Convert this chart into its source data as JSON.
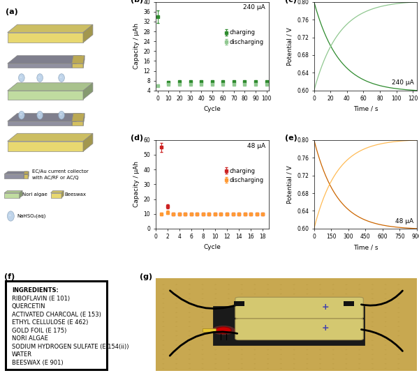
{
  "panel_b": {
    "annotation": "240 μA",
    "charge_cycles": [
      0,
      10,
      20,
      30,
      40,
      50,
      60,
      70,
      80,
      90,
      100
    ],
    "charge_vals": [
      34,
      7.2,
      7.5,
      7.5,
      7.5,
      7.5,
      7.5,
      7.5,
      7.5,
      7.5,
      7.5
    ],
    "charge_err": [
      2.5,
      0.4,
      0.4,
      0.4,
      0.4,
      0.4,
      0.4,
      0.4,
      0.4,
      0.4,
      0.4
    ],
    "discharge_cycles": [
      0,
      10,
      20,
      30,
      40,
      50,
      60,
      70,
      80,
      90,
      100
    ],
    "discharge_vals": [
      6.0,
      6.5,
      6.5,
      6.5,
      6.5,
      6.5,
      6.5,
      6.5,
      6.5,
      6.5,
      6.5
    ],
    "discharge_err": [
      0.4,
      0.4,
      0.4,
      0.4,
      0.4,
      0.4,
      0.4,
      0.4,
      0.4,
      0.4,
      0.4
    ],
    "ylabel": "Capacity / μAh",
    "xlabel": "Cycle",
    "ylim": [
      4,
      40
    ],
    "yticks": [
      4,
      8,
      12,
      16,
      20,
      24,
      28,
      32,
      36,
      40
    ],
    "xlim": [
      -2,
      102
    ],
    "xticks": [
      0,
      10,
      20,
      30,
      40,
      50,
      60,
      70,
      80,
      90,
      100
    ],
    "charge_color": "#2e8b2e",
    "discharge_color": "#90c890",
    "legend_charge": "charging",
    "legend_discharge": "discharging"
  },
  "panel_c": {
    "annotation": "240 μA",
    "ylabel": "Potential / V",
    "xlabel": "Time / s",
    "ylim": [
      0.6,
      0.8
    ],
    "yticks": [
      0.6,
      0.64,
      0.68,
      0.72,
      0.76,
      0.8
    ],
    "xlim": [
      0,
      125
    ],
    "xticks": [
      0,
      20,
      40,
      60,
      80,
      100,
      120
    ],
    "line_color_dark": "#2e8b2e",
    "line_color_light": "#90c890"
  },
  "panel_d": {
    "annotation": "48 μA",
    "charge_cycles": [
      1,
      2,
      3,
      4,
      5,
      6,
      7,
      8,
      9,
      10,
      11,
      12,
      13,
      14,
      15,
      16,
      17,
      18
    ],
    "charge_vals": [
      55,
      15,
      10,
      10,
      10,
      10,
      10,
      10,
      10,
      10,
      10,
      10,
      10,
      10,
      10,
      10,
      10,
      10
    ],
    "charge_err": [
      3,
      1.5,
      0.5,
      0.5,
      0.5,
      0.5,
      0.5,
      0.5,
      0.5,
      0.5,
      0.5,
      0.5,
      0.5,
      0.5,
      0.5,
      0.5,
      0.5,
      0.5
    ],
    "discharge_cycles": [
      1,
      2,
      3,
      4,
      5,
      6,
      7,
      8,
      9,
      10,
      11,
      12,
      13,
      14,
      15,
      16,
      17,
      18
    ],
    "discharge_vals": [
      10,
      11,
      10,
      10,
      10,
      10,
      10,
      10,
      10,
      10,
      10,
      10,
      10,
      10,
      10,
      10,
      10,
      10
    ],
    "discharge_err": [
      1,
      1,
      0.5,
      0.5,
      0.5,
      0.5,
      0.5,
      0.5,
      0.5,
      0.5,
      0.5,
      0.5,
      0.5,
      0.5,
      0.5,
      0.5,
      0.5,
      0.5
    ],
    "ylabel": "Capacity / μAh",
    "xlabel": "Cycle",
    "ylim": [
      0,
      60
    ],
    "yticks": [
      0,
      10,
      20,
      30,
      40,
      50,
      60
    ],
    "xlim": [
      0,
      19
    ],
    "xticks": [
      0,
      2,
      4,
      6,
      8,
      10,
      12,
      14,
      16,
      18
    ],
    "charge_color": "#cc2222",
    "discharge_color": "#ff9933",
    "legend_charge": "charging",
    "legend_discharge": "discharging"
  },
  "panel_e": {
    "annotation": "48 μA",
    "ylabel": "Potential / V",
    "xlabel": "Time / s",
    "ylim": [
      0.6,
      0.8
    ],
    "yticks": [
      0.6,
      0.64,
      0.68,
      0.72,
      0.76,
      0.8
    ],
    "xlim": [
      0,
      900
    ],
    "xticks": [
      0,
      150,
      300,
      450,
      600,
      750,
      900
    ],
    "line_color_dark": "#cc6600",
    "line_color_light": "#ffbb55"
  },
  "panel_f": {
    "ingredients": [
      "INGREDIENTS:",
      "RIBOFLAVIN (E 101)",
      "QUERCETIN",
      "ACTIVATED CHARCOAL (E 153)",
      "ETHYL CELLULOSE (E 462)",
      "GOLD FOIL (E 175)",
      "NORI ALGAE",
      "SODIUM HYDROGEN SULFATE (E 154(ii))",
      "WATER",
      "BEESWAX (E 901)"
    ]
  },
  "beeswax_color": "#e8d870",
  "algae_color": "#c0dca0",
  "collector_color": "#9090a0",
  "collector_gold": "#d4c060",
  "droplet_color": "#a8c0d8",
  "bg_color": "#ffffff",
  "panel_label_size": 8,
  "axis_label_size": 6.5,
  "tick_label_size": 5.5,
  "annotation_size": 6.5,
  "legend_size": 6
}
